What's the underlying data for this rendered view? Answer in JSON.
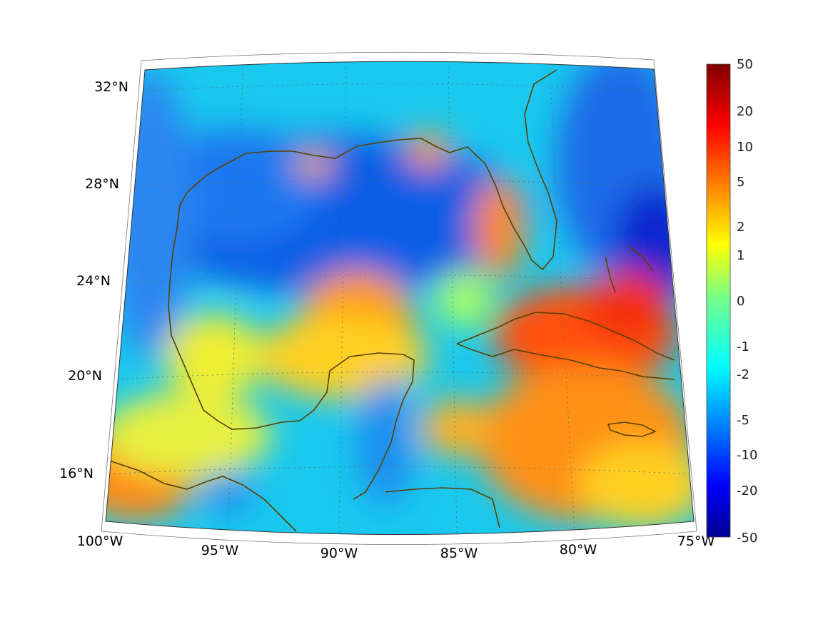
{
  "map": {
    "projection": "conic",
    "variable_scale": "symmetric log",
    "lon_labels": [
      "100°W",
      "95°W",
      "90°W",
      "85°W",
      "80°W",
      "75°W"
    ],
    "lat_labels": [
      "32°N",
      "28°N",
      "24°N",
      "20°N",
      "16°N"
    ],
    "coastline_color": "#5a4000"
  },
  "colorbar": {
    "colormap": "jet",
    "tick_labels": [
      "50",
      "20",
      "10",
      "5",
      "2",
      "1",
      "0",
      "-1",
      "-2",
      "-5",
      "-10",
      "-20",
      "-50"
    ],
    "range": [
      -50,
      50
    ]
  },
  "regions": [
    {
      "name": "gulf-deep-low",
      "level": "low"
    },
    {
      "name": "cuba-bahamas-high",
      "level": "high"
    },
    {
      "name": "yucatan-channel-high",
      "level": "high"
    },
    {
      "name": "pacific-southwest-high",
      "level": "high"
    }
  ]
}
